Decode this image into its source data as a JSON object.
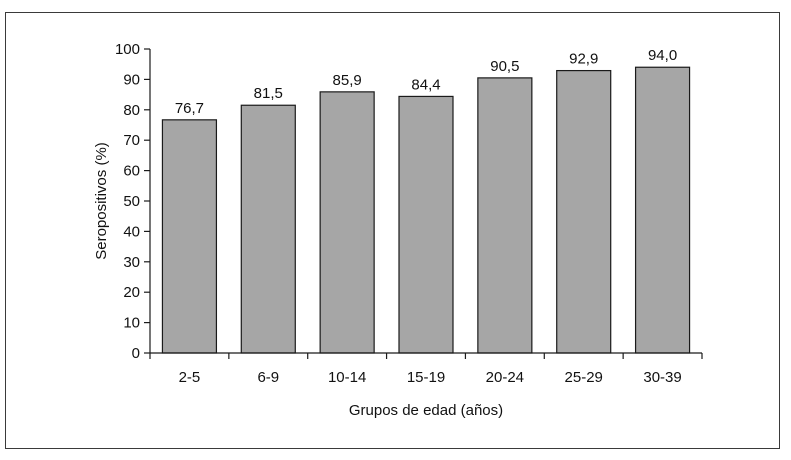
{
  "chart_data": {
    "type": "bar",
    "title": "",
    "xlabel": "Grupos de edad (años)",
    "ylabel": "Seropositivos (%)",
    "categories": [
      "2-5",
      "6-9",
      "10-14",
      "15-19",
      "20-24",
      "25-29",
      "30-39"
    ],
    "values": [
      76.7,
      81.5,
      85.9,
      84.4,
      90.5,
      92.9,
      94.0
    ],
    "value_labels": [
      "76,7",
      "81,5",
      "85,9",
      "84,4",
      "90,5",
      "92,9",
      "94,0"
    ],
    "ylim": [
      0,
      100
    ],
    "yticks": [
      0,
      10,
      20,
      30,
      40,
      50,
      60,
      70,
      80,
      90,
      100
    ],
    "grid": false,
    "legend": "none",
    "colors": {
      "bar_fill": "#a6a6a6",
      "bar_stroke": "#1a1a1a",
      "axis": "#1a1a1a"
    }
  }
}
